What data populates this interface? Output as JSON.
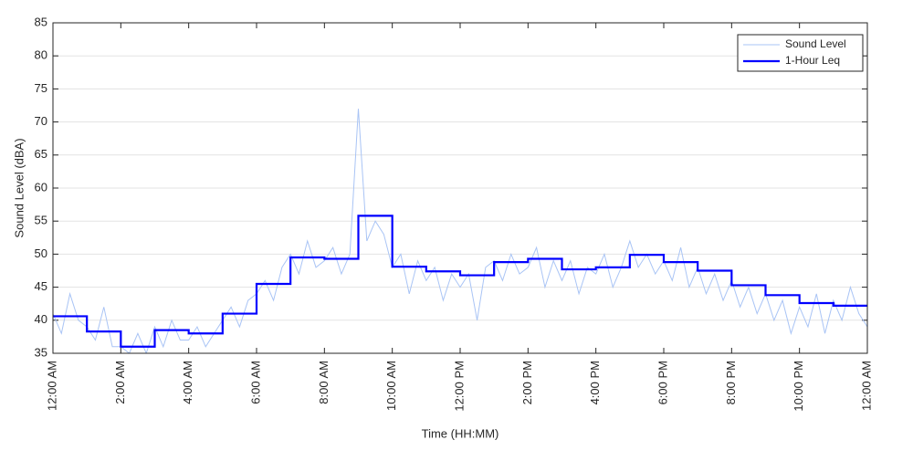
{
  "chart_data": {
    "type": "line",
    "xlabel": "Time (HH:MM)",
    "ylabel": "Sound Level (dBA)",
    "xlim": [
      0,
      24
    ],
    "ylim": [
      35,
      85
    ],
    "xticks": [
      {
        "value": 0,
        "label": "12:00 AM"
      },
      {
        "value": 2,
        "label": "2:00 AM"
      },
      {
        "value": 4,
        "label": "4:00 AM"
      },
      {
        "value": 6,
        "label": "6:00 AM"
      },
      {
        "value": 8,
        "label": "8:00 AM"
      },
      {
        "value": 10,
        "label": "10:00 AM"
      },
      {
        "value": 12,
        "label": "12:00 PM"
      },
      {
        "value": 14,
        "label": "2:00 PM"
      },
      {
        "value": 16,
        "label": "4:00 PM"
      },
      {
        "value": 18,
        "label": "6:00 PM"
      },
      {
        "value": 20,
        "label": "8:00 PM"
      },
      {
        "value": 22,
        "label": "10:00 PM"
      },
      {
        "value": 24,
        "label": "12:00 AM"
      }
    ],
    "yticks": [
      35,
      40,
      45,
      50,
      55,
      60,
      65,
      70,
      75,
      80,
      85
    ],
    "grid": true,
    "legend": "upper right",
    "series": [
      {
        "name": "Sound Level",
        "color": "#a9c4f5",
        "width": 1,
        "x": [
          0,
          0.25,
          0.5,
          0.75,
          1,
          1.25,
          1.5,
          1.75,
          2,
          2.25,
          2.5,
          2.75,
          3,
          3.25,
          3.5,
          3.75,
          4,
          4.25,
          4.5,
          4.75,
          5,
          5.25,
          5.5,
          5.75,
          6,
          6.25,
          6.5,
          6.75,
          7,
          7.25,
          7.5,
          7.75,
          8,
          8.25,
          8.5,
          8.75,
          9,
          9.25,
          9.5,
          9.75,
          10,
          10.25,
          10.5,
          10.75,
          11,
          11.25,
          11.5,
          11.75,
          12,
          12.25,
          12.5,
          12.75,
          13,
          13.25,
          13.5,
          13.75,
          14,
          14.25,
          14.5,
          14.75,
          15,
          15.25,
          15.5,
          15.75,
          16,
          16.25,
          16.5,
          16.75,
          17,
          17.25,
          17.5,
          17.75,
          18,
          18.25,
          18.5,
          18.75,
          19,
          19.25,
          19.5,
          19.75,
          20,
          20.25,
          20.5,
          20.75,
          21,
          21.25,
          21.5,
          21.75,
          22,
          22.25,
          22.5,
          22.75,
          23,
          23.25,
          23.5,
          23.75,
          24
        ],
        "values": [
          41,
          38,
          44,
          40,
          39,
          37,
          42,
          36,
          36,
          35,
          38,
          35,
          39,
          36,
          40,
          37,
          37,
          39,
          36,
          38,
          40,
          42,
          39,
          43,
          44,
          46,
          43,
          48,
          50,
          47,
          52,
          48,
          49,
          51,
          47,
          50,
          72,
          52,
          55,
          53,
          48,
          50,
          44,
          49,
          46,
          48,
          43,
          47,
          45,
          47,
          40,
          48,
          49,
          46,
          50,
          47,
          48,
          51,
          45,
          49,
          46,
          49,
          44,
          48,
          47,
          50,
          45,
          48,
          52,
          48,
          50,
          47,
          49,
          46,
          51,
          45,
          48,
          44,
          47,
          43,
          46,
          42,
          45,
          41,
          44,
          40,
          43,
          38,
          42,
          39,
          44,
          38,
          43,
          40,
          45,
          41,
          39
        ]
      },
      {
        "name": "1-Hour Leq",
        "color": "#0000ff",
        "width": 2.2,
        "step": "post",
        "x": [
          0,
          1,
          2,
          3,
          4,
          5,
          6,
          7,
          8,
          9,
          10,
          11,
          12,
          13,
          14,
          15,
          16,
          17,
          18,
          19,
          20,
          21,
          22,
          23
        ],
        "values": [
          40.6,
          38.3,
          36.0,
          38.5,
          38.0,
          41.0,
          45.5,
          49.5,
          49.3,
          55.8,
          48.1,
          47.4,
          46.8,
          48.8,
          49.3,
          47.7,
          48.0,
          49.9,
          48.8,
          47.5,
          45.3,
          43.8,
          42.6,
          42.2
        ]
      }
    ]
  }
}
